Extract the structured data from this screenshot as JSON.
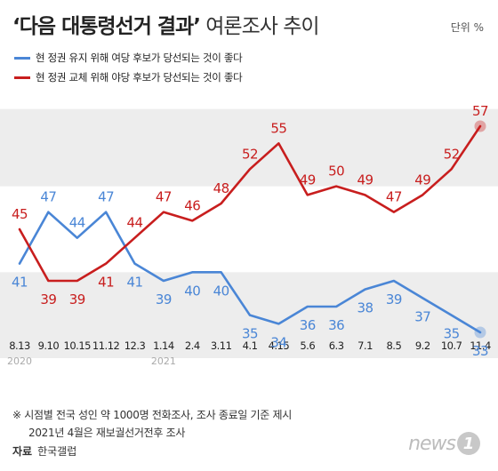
{
  "title": {
    "quoted": "‘다음 대통령선거 결과’",
    "rest": " 여론조사 추이"
  },
  "unit": "단위 %",
  "colors": {
    "blue": "#4a86d6",
    "red": "#c81e1e",
    "band": "#ededed"
  },
  "chart_data": {
    "type": "line",
    "categories": [
      "8.13",
      "9.10",
      "10.15",
      "11.12",
      "12.3",
      "1.14",
      "2.4",
      "3.11",
      "4.1",
      "4.15",
      "5.6",
      "6.3",
      "7.1",
      "8.5",
      "9.2",
      "10.7",
      "11.4"
    ],
    "year_labels": [
      {
        "index": 0,
        "text": "2020"
      },
      {
        "index": 5,
        "text": "2021"
      }
    ],
    "ylim": [
      30,
      60
    ],
    "series": [
      {
        "name": "현 정권 유지 위해 여당 후보가 당선되는 것이 좋다",
        "color": "#4a86d6",
        "values": [
          41,
          47,
          44,
          47,
          41,
          39,
          40,
          40,
          35,
          34,
          36,
          36,
          38,
          39,
          37,
          35,
          33
        ]
      },
      {
        "name": "현 정권 교체 위해 야당 후보가 당선되는 것이 좋다",
        "color": "#c81e1e",
        "values": [
          45,
          39,
          39,
          41,
          44,
          47,
          46,
          48,
          52,
          55,
          49,
          50,
          49,
          47,
          49,
          52,
          57
        ]
      }
    ]
  },
  "footnotes": [
    "※ 시점별 전국 성인 약 1000명 전화조사, 조사 종료일 기준 제시",
    "2021년 4월은 재보궐선거전후 조사"
  ],
  "source": {
    "label": "자료",
    "value": "한국갤럽"
  },
  "brand": {
    "text": "news",
    "mark": "1"
  }
}
